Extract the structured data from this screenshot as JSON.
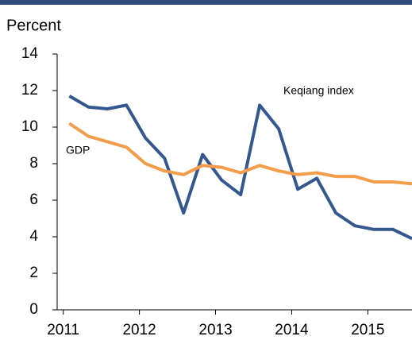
{
  "chart_data": {
    "type": "line",
    "y_label": "Percent",
    "x": [
      2011.08,
      2011.33,
      2011.58,
      2011.83,
      2012.08,
      2012.33,
      2012.58,
      2012.83,
      2013.08,
      2013.33,
      2013.58,
      2013.83,
      2014.08,
      2014.33,
      2014.58,
      2014.83,
      2015.08,
      2015.33,
      2015.58
    ],
    "series": [
      {
        "name": "Keqiang index",
        "color": "#34578f",
        "values": [
          11.7,
          11.1,
          11.0,
          11.2,
          9.4,
          8.3,
          5.3,
          8.5,
          7.1,
          6.3,
          11.2,
          9.9,
          6.6,
          7.2,
          5.3,
          4.6,
          4.4,
          4.4,
          3.9
        ]
      },
      {
        "name": "GDP",
        "color": "#f39c4a",
        "values": [
          10.2,
          9.5,
          9.2,
          8.9,
          8.0,
          7.6,
          7.4,
          7.9,
          7.8,
          7.5,
          7.9,
          7.6,
          7.4,
          7.5,
          7.3,
          7.3,
          7.0,
          7.0,
          6.9
        ]
      }
    ],
    "xlim": [
      2010.92,
      2015.58
    ],
    "xticks": [
      2011,
      2012,
      2013,
      2014,
      2015
    ],
    "ylim": [
      0,
      14
    ],
    "yticks": [
      0,
      2,
      4,
      6,
      8,
      10,
      12,
      14
    ]
  }
}
